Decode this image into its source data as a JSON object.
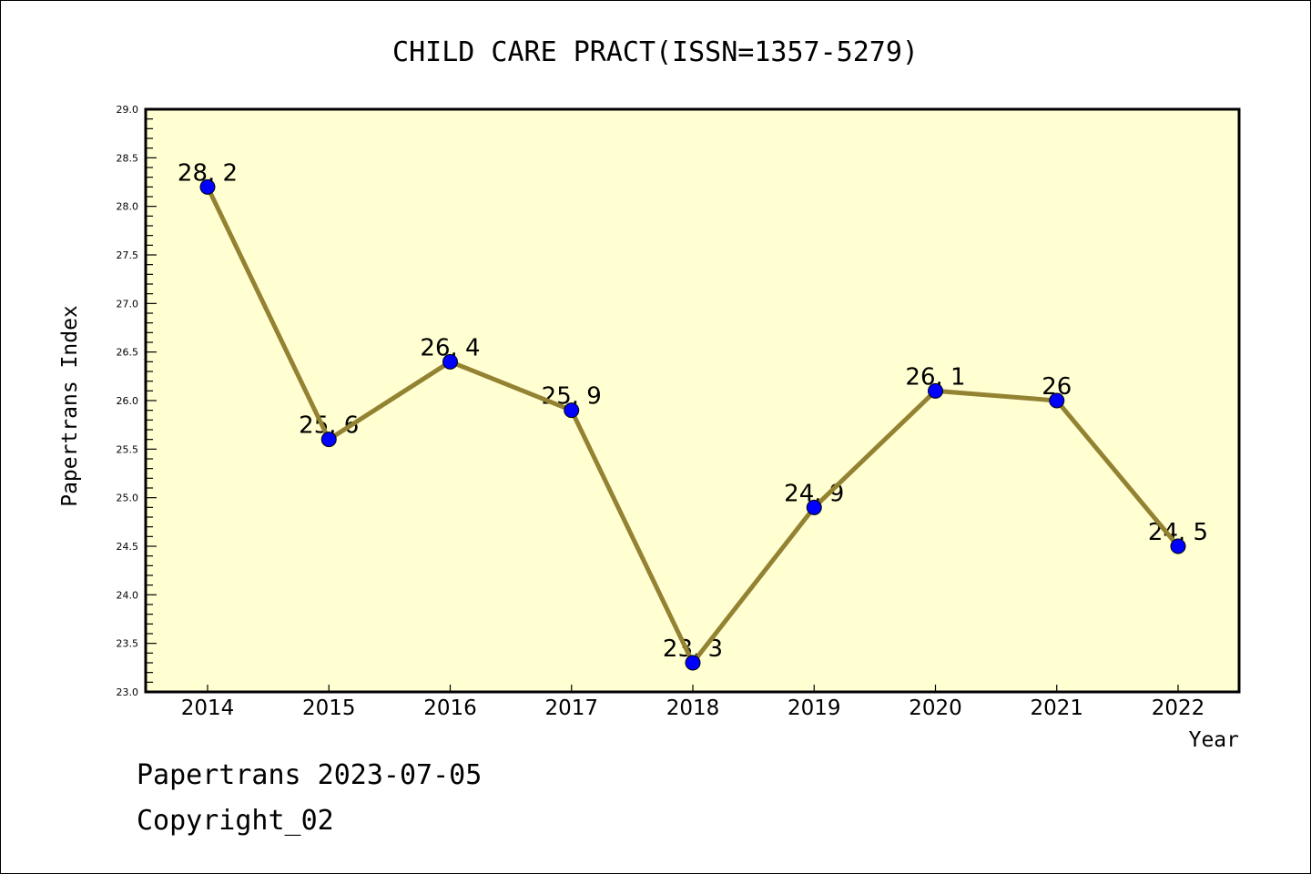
{
  "chart_data": {
    "type": "line",
    "title": "CHILD CARE PRACT(ISSN=1357-5279)",
    "xlabel": "Year",
    "ylabel": "Papertrans Index",
    "categories": [
      "2014",
      "2015",
      "2016",
      "2017",
      "2018",
      "2019",
      "2020",
      "2021",
      "2022"
    ],
    "series": [
      {
        "name": "Papertrans Index",
        "values": [
          28.2,
          25.6,
          26.4,
          25.9,
          23.3,
          24.9,
          26.1,
          26.0,
          24.5
        ],
        "labels": [
          "28. 2",
          "25. 6",
          "26. 4",
          "25. 9",
          "23. 3",
          "24. 9",
          "26. 1",
          "26",
          "24. 5"
        ]
      }
    ],
    "ylim": [
      23.0,
      29.0
    ],
    "yticks": [
      "23.0",
      "23.5",
      "24.0",
      "24.5",
      "25.0",
      "25.5",
      "26.0",
      "26.5",
      "27.0",
      "27.5",
      "28.0",
      "28.5",
      "29.0"
    ],
    "yminor_step": 0.1,
    "grid": false,
    "legend": "none",
    "colors": {
      "plot_background": "#ffffd2",
      "line": "#948233",
      "marker_fill": "#0000ff",
      "marker_edge": "#000000",
      "axis": "#000000"
    }
  },
  "footer": {
    "line1": "Papertrans 2023-07-05",
    "line2": "Copyright_02"
  }
}
